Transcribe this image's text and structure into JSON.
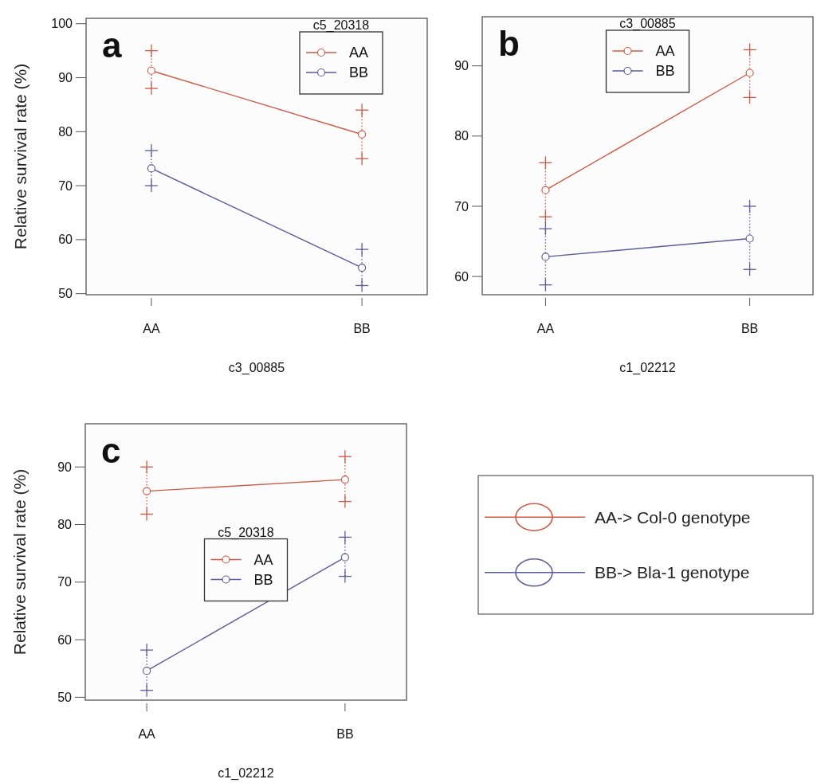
{
  "chart_data": [
    {
      "type": "line",
      "title": "a",
      "xlabel": "c3_00885",
      "ylabel": "Relative survival rate (%)",
      "legend_title": "c5_20318",
      "legend": "top right",
      "marker": "circle",
      "categories": [
        "AA",
        "BB"
      ],
      "ylim": [
        49.8,
        101
      ],
      "yticks": [
        50,
        60,
        70,
        80,
        90,
        100
      ],
      "series": [
        {
          "name": "AA",
          "color": "#cc5a45",
          "values": [
            91.3,
            79.5
          ],
          "errors": [
            [
              88,
              95
            ],
            [
              75,
              84
            ]
          ]
        },
        {
          "name": "BB",
          "color": "#5c5c9c",
          "values": [
            73.2,
            54.8
          ],
          "errors": [
            [
              70,
              76.5
            ],
            [
              51.5,
              58.2
            ]
          ]
        }
      ]
    },
    {
      "type": "line",
      "title": "b",
      "xlabel": "c1_02212",
      "legend_title": "c3_00885",
      "legend": "top",
      "marker": "circle",
      "categories": [
        "AA",
        "BB"
      ],
      "ylim": [
        57.4,
        97
      ],
      "yticks": [
        60,
        70,
        80,
        90
      ],
      "series": [
        {
          "name": "AA",
          "color": "#cc5a45",
          "values": [
            72.3,
            89
          ],
          "errors": [
            [
              68.5,
              76.2
            ],
            [
              85.5,
              92.3
            ]
          ]
        },
        {
          "name": "BB",
          "color": "#5c5c9c",
          "values": [
            62.8,
            65.4
          ],
          "errors": [
            [
              58.8,
              66.8
            ],
            [
              61,
              70
            ]
          ]
        }
      ]
    },
    {
      "type": "line",
      "title": "c",
      "xlabel": "c1_02212",
      "ylabel": "Relative survival rate (%)",
      "legend_title": "c5_20318",
      "legend": "center",
      "marker": "circle",
      "categories": [
        "AA",
        "BB"
      ],
      "ylim": [
        49.5,
        97.5
      ],
      "yticks": [
        50,
        60,
        70,
        80,
        90
      ],
      "series": [
        {
          "name": "AA",
          "color": "#cc5a45",
          "values": [
            85.8,
            87.8
          ],
          "errors": [
            [
              81.8,
              90
            ],
            [
              84,
              91.8
            ]
          ]
        },
        {
          "name": "BB",
          "color": "#5c5c9c",
          "values": [
            54.6,
            74.3
          ],
          "errors": [
            [
              51.2,
              58.2
            ],
            [
              71,
              77.8
            ]
          ]
        }
      ]
    },
    {
      "type": "other",
      "annotations": [
        "AA-> Col-0 genotype",
        "BB-> Bla-1 genotype"
      ]
    }
  ]
}
